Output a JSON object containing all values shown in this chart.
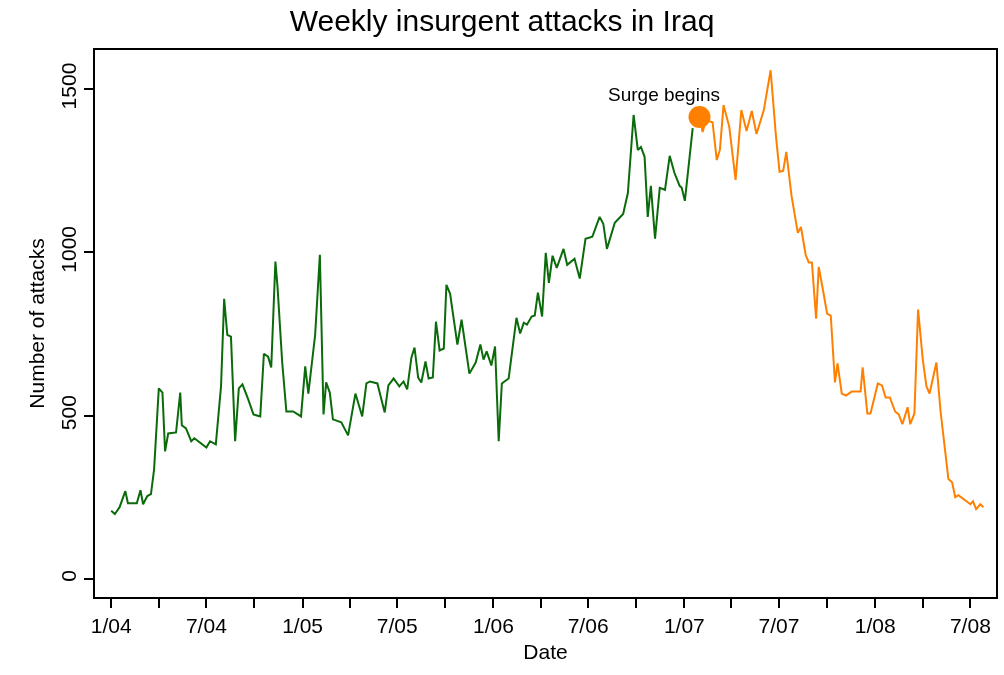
{
  "chart_data": {
    "type": "line",
    "title": "Weekly insurgent attacks in Iraq",
    "xlabel": "Date",
    "ylabel": "Number of attacks",
    "xlim": [
      "2003-12-01",
      "2008-08-19"
    ],
    "ylim": [
      -55,
      1620
    ],
    "yticks": [
      0,
      500,
      1000,
      1500
    ],
    "xticks": [
      {
        "value": "2004-01-01",
        "label": "1/04"
      },
      {
        "value": "2004-04-01",
        "label": null
      },
      {
        "value": "2004-07-01",
        "label": "7/04"
      },
      {
        "value": "2004-10-01",
        "label": null
      },
      {
        "value": "2005-01-01",
        "label": "1/05"
      },
      {
        "value": "2005-04-01",
        "label": null
      },
      {
        "value": "2005-07-01",
        "label": "7/05"
      },
      {
        "value": "2005-10-01",
        "label": null
      },
      {
        "value": "2006-01-01",
        "label": "1/06"
      },
      {
        "value": "2006-04-01",
        "label": null
      },
      {
        "value": "2006-07-01",
        "label": "7/06"
      },
      {
        "value": "2006-10-01",
        "label": null
      },
      {
        "value": "2007-01-01",
        "label": "1/07"
      },
      {
        "value": "2007-04-01",
        "label": null
      },
      {
        "value": "2007-07-01",
        "label": "7/07"
      },
      {
        "value": "2007-10-01",
        "label": null
      },
      {
        "value": "2008-01-01",
        "label": "1/08"
      },
      {
        "value": "2008-04-01",
        "label": null
      },
      {
        "value": "2008-07-01",
        "label": "7/08"
      }
    ],
    "line_style": "solid",
    "annotations": [
      {
        "text": "Surge begins",
        "x": "2007-01-30",
        "y": 1415
      }
    ],
    "series": [
      {
        "marker": "none",
        "color": "#0b6b0b",
        "x": [
          "2004-01-01",
          "2004-01-08",
          "2004-01-17",
          "2004-01-28",
          "2004-02-02",
          "2004-02-19",
          "2004-02-26",
          "2004-03-02",
          "2004-03-10",
          "2004-03-17",
          "2004-03-23",
          "2004-04-01",
          "2004-04-08",
          "2004-04-13",
          "2004-04-19",
          "2004-05-04",
          "2004-05-12",
          "2004-05-15",
          "2004-05-23",
          "2004-06-02",
          "2004-06-08",
          "2004-07-01",
          "2004-07-08",
          "2004-07-19",
          "2004-07-29",
          "2004-08-04",
          "2004-08-10",
          "2004-08-17",
          "2004-08-25",
          "2004-09-01",
          "2004-09-08",
          "2004-09-19",
          "2004-09-29",
          "2004-10-12",
          "2004-10-19",
          "2004-10-27",
          "2004-11-02",
          "2004-11-10",
          "2004-11-14",
          "2004-11-23",
          "2004-12-01",
          "2004-12-14",
          "2004-12-29",
          "2005-01-06",
          "2005-01-12",
          "2005-01-25",
          "2005-02-03",
          "2005-02-10",
          "2005-02-15",
          "2005-02-22",
          "2005-02-28",
          "2005-03-16",
          "2005-03-29",
          "2005-04-12",
          "2005-04-25",
          "2005-05-03",
          "2005-05-10",
          "2005-05-24",
          "2005-06-07",
          "2005-06-14",
          "2005-06-24",
          "2005-07-05",
          "2005-07-13",
          "2005-07-20",
          "2005-07-28",
          "2005-08-03",
          "2005-08-10",
          "2005-08-16",
          "2005-08-24",
          "2005-08-30",
          "2005-09-07",
          "2005-09-13",
          "2005-09-20",
          "2005-09-28",
          "2005-10-03",
          "2005-10-10",
          "2005-10-24",
          "2005-11-01",
          "2005-11-16",
          "2005-11-28",
          "2005-12-07",
          "2005-12-13",
          "2005-12-19",
          "2005-12-28",
          "2006-01-04",
          "2006-01-11",
          "2006-01-17",
          "2006-01-30",
          "2006-02-14",
          "2006-02-21",
          "2006-02-28",
          "2006-03-06",
          "2006-03-15",
          "2006-03-21",
          "2006-03-27",
          "2006-04-04",
          "2006-04-11",
          "2006-04-17",
          "2006-04-24",
          "2006-05-02",
          "2006-05-15",
          "2006-05-22",
          "2006-06-05",
          "2006-06-15",
          "2006-06-26",
          "2006-07-09",
          "2006-07-23",
          "2006-07-30",
          "2006-08-06",
          "2006-08-21",
          "2006-09-06",
          "2006-09-15",
          "2006-09-26",
          "2006-10-04",
          "2006-10-10",
          "2006-10-17",
          "2006-10-23",
          "2006-10-29",
          "2006-11-06",
          "2006-11-15",
          "2006-11-25",
          "2006-12-04",
          "2006-12-13",
          "2006-12-23",
          "2006-12-27",
          "2007-01-02",
          "2007-01-17"
        ],
        "values": [
          209,
          199,
          220,
          269,
          232,
          232,
          272,
          229,
          254,
          260,
          336,
          584,
          571,
          391,
          446,
          449,
          571,
          471,
          461,
          422,
          431,
          403,
          422,
          412,
          590,
          858,
          748,
          742,
          422,
          584,
          596,
          550,
          504,
          498,
          690,
          681,
          648,
          972,
          896,
          663,
          513,
          513,
          498,
          651,
          568,
          748,
          993,
          504,
          602,
          571,
          489,
          480,
          440,
          568,
          498,
          599,
          605,
          599,
          510,
          593,
          614,
          590,
          605,
          581,
          678,
          709,
          617,
          602,
          666,
          614,
          617,
          788,
          700,
          706,
          901,
          874,
          718,
          794,
          629,
          663,
          718,
          672,
          697,
          654,
          712,
          422,
          599,
          614,
          800,
          752,
          785,
          779,
          804,
          807,
          877,
          804,
          999,
          907,
          990,
          953,
          1011,
          962,
          981,
          920,
          1042,
          1048,
          1109,
          1088,
          1011,
          1091,
          1118,
          1182,
          1421,
          1314,
          1323,
          1293,
          1109,
          1204,
          1042,
          1198,
          1192,
          1296,
          1244,
          1204,
          1198,
          1158,
          1381
        ]
      },
      {
        "marker": "none",
        "color": "#ff8000",
        "x": [
          "2007-01-30",
          "2007-02-05",
          "2007-02-11",
          "2007-02-24",
          "2007-03-04",
          "2007-03-10",
          "2007-03-17",
          "2007-03-28",
          "2007-04-09",
          "2007-04-20",
          "2007-04-30",
          "2007-05-10",
          "2007-05-19",
          "2007-06-02",
          "2007-06-15",
          "2007-06-25",
          "2007-07-02",
          "2007-07-09",
          "2007-07-15",
          "2007-07-25",
          "2007-08-06",
          "2007-08-12",
          "2007-08-21",
          "2007-08-27",
          "2007-09-02",
          "2007-09-10",
          "2007-09-15",
          "2007-09-23",
          "2007-10-01",
          "2007-10-08",
          "2007-10-16",
          "2007-10-21",
          "2007-10-29",
          "2007-11-06",
          "2007-11-17",
          "2007-12-04",
          "2007-12-08",
          "2007-12-17",
          "2007-12-23",
          "2008-01-06",
          "2008-01-14",
          "2008-01-21",
          "2008-01-29",
          "2008-02-08",
          "2008-02-15",
          "2008-02-22",
          "2008-03-03",
          "2008-03-08",
          "2008-03-16",
          "2008-03-23",
          "2008-04-01",
          "2008-04-08",
          "2008-04-14",
          "2008-04-27",
          "2008-05-05",
          "2008-05-20",
          "2008-05-27",
          "2008-06-02",
          "2008-06-08",
          "2008-07-01",
          "2008-07-06",
          "2008-07-12",
          "2008-07-20",
          "2008-07-26"
        ],
        "values": [
          1415,
          1369,
          1405,
          1399,
          1283,
          1314,
          1451,
          1384,
          1222,
          1436,
          1372,
          1433,
          1363,
          1436,
          1558,
          1360,
          1247,
          1250,
          1308,
          1173,
          1060,
          1078,
          993,
          969,
          969,
          797,
          956,
          886,
          813,
          807,
          602,
          660,
          568,
          562,
          574,
          574,
          648,
          507,
          507,
          599,
          593,
          556,
          556,
          513,
          504,
          474,
          526,
          474,
          507,
          825,
          672,
          590,
          568,
          663,
          513,
          306,
          296,
          251,
          257,
          229,
          238,
          214,
          229,
          220
        ]
      },
      {
        "type": "scatter",
        "marker": "circle",
        "color": "#ff8000",
        "x": [
          "2007-01-30"
        ],
        "values": [
          1415
        ]
      }
    ]
  }
}
